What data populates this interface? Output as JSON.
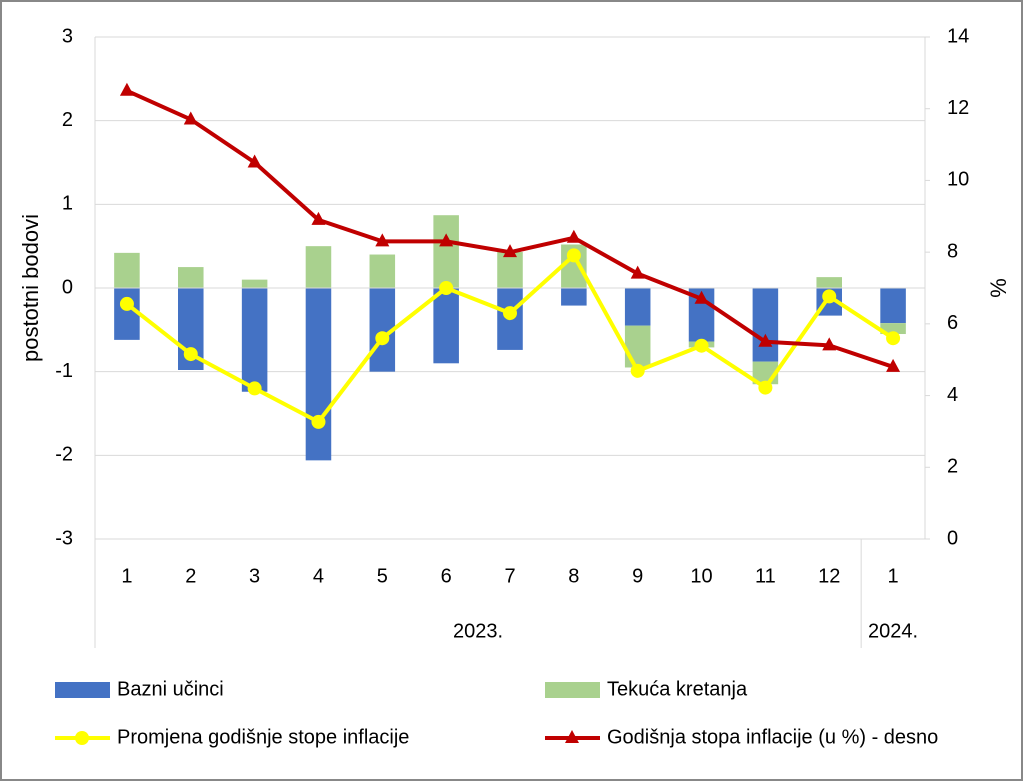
{
  "chart_data": {
    "type": "bar-line",
    "y_label": "postotni bodovi",
    "y2_label": "%",
    "categories": [
      "1",
      "2",
      "3",
      "4",
      "5",
      "6",
      "7",
      "8",
      "9",
      "10",
      "11",
      "12",
      "1"
    ],
    "groups": [
      {
        "label": "2023.",
        "count": 12
      },
      {
        "label": "2024.",
        "count": 1
      }
    ],
    "ylim": [
      -3,
      3
    ],
    "yticks": [
      -3,
      -2,
      -1,
      0,
      1,
      2,
      3
    ],
    "y2lim": [
      0,
      14
    ],
    "y2ticks": [
      0,
      2,
      4,
      6,
      8,
      10,
      12,
      14
    ],
    "grid": true,
    "series": [
      {
        "name": "Bazni učinci",
        "type": "bar",
        "color": "#4472c4",
        "values": [
          -0.62,
          -0.98,
          -1.24,
          -2.06,
          -1.0,
          -0.9,
          -0.74,
          -0.21,
          -0.45,
          -0.64,
          -0.88,
          -0.33,
          -0.42
        ]
      },
      {
        "name": "Tekuća kretanja",
        "type": "bar",
        "color": "#a9d18e",
        "values": [
          0.42,
          0.25,
          0.1,
          0.5,
          0.4,
          0.87,
          0.43,
          0.52,
          -0.5,
          -0.07,
          -0.27,
          0.13,
          -0.13
        ]
      },
      {
        "name": "Promjena godišnje stope inflacije",
        "type": "line",
        "marker": "circle",
        "color": "#ffff00",
        "values": [
          -0.19,
          -0.79,
          -1.2,
          -1.6,
          -0.6,
          0.0,
          -0.3,
          0.39,
          -0.99,
          -0.69,
          -1.19,
          -0.1,
          -0.6
        ]
      },
      {
        "name": "Godišnja stopa inflacije (u %) - desno",
        "type": "line",
        "marker": "triangle",
        "color": "#c00000",
        "axis": "y2",
        "values": [
          12.5,
          11.7,
          10.5,
          8.9,
          8.3,
          8.3,
          8.0,
          8.4,
          7.4,
          6.7,
          5.5,
          5.4,
          4.8
        ]
      }
    ]
  }
}
